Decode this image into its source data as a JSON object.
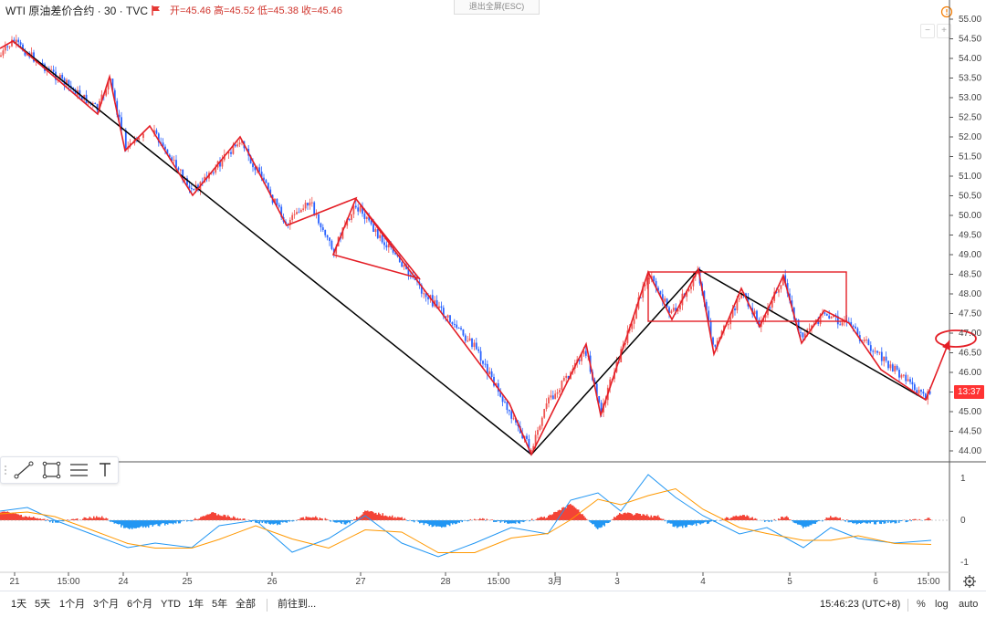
{
  "header": {
    "symbol_title": "WTI 原油差价合约 · 30 · TVC",
    "ohlc": "开=45.46  高=45.52  低=45.38  收=45.46"
  },
  "exit_fullscreen": "退出全屏(ESC)",
  "price_tag": "13:37",
  "colors": {
    "up": "#ef5350",
    "down": "#2962ff",
    "drawing": "#e41e26",
    "trend": "#000000",
    "macd_pos": "#f44336",
    "macd_neg": "#2196f3"
  },
  "axis_main": [
    "55.00",
    "54.50",
    "54.00",
    "53.50",
    "53.00",
    "52.50",
    "52.00",
    "51.50",
    "51.00",
    "50.50",
    "50.00",
    "49.50",
    "49.00",
    "48.50",
    "48.00",
    "47.50",
    "47.00",
    "46.50",
    "46.00",
    "45.50",
    "45.00",
    "44.50",
    "44.00"
  ],
  "axis_indicator": [
    "1",
    "0",
    "-1"
  ],
  "time_axis": [
    "21",
    "15:00",
    "24",
    "25",
    "26",
    "27",
    "28",
    "15:00",
    "3月",
    "3",
    "4",
    "5",
    "6",
    "15:00"
  ],
  "bottom_bar": {
    "ranges": [
      "1天",
      "5天",
      "1个月",
      "3个月",
      "6个月",
      "YTD",
      "1年",
      "5年",
      "全部"
    ],
    "goto": "前往到...",
    "clock": "15:46:23 (UTC+8)",
    "percent": "%",
    "log": "log",
    "auto": "auto"
  },
  "icons": [
    "flag-icon",
    "line-tool-icon",
    "rectangle-tool-icon",
    "parallel-channel-icon",
    "text-tool-icon",
    "settings-gear-icon",
    "alert-clock-icon",
    "minus-icon",
    "plus-icon"
  ]
}
